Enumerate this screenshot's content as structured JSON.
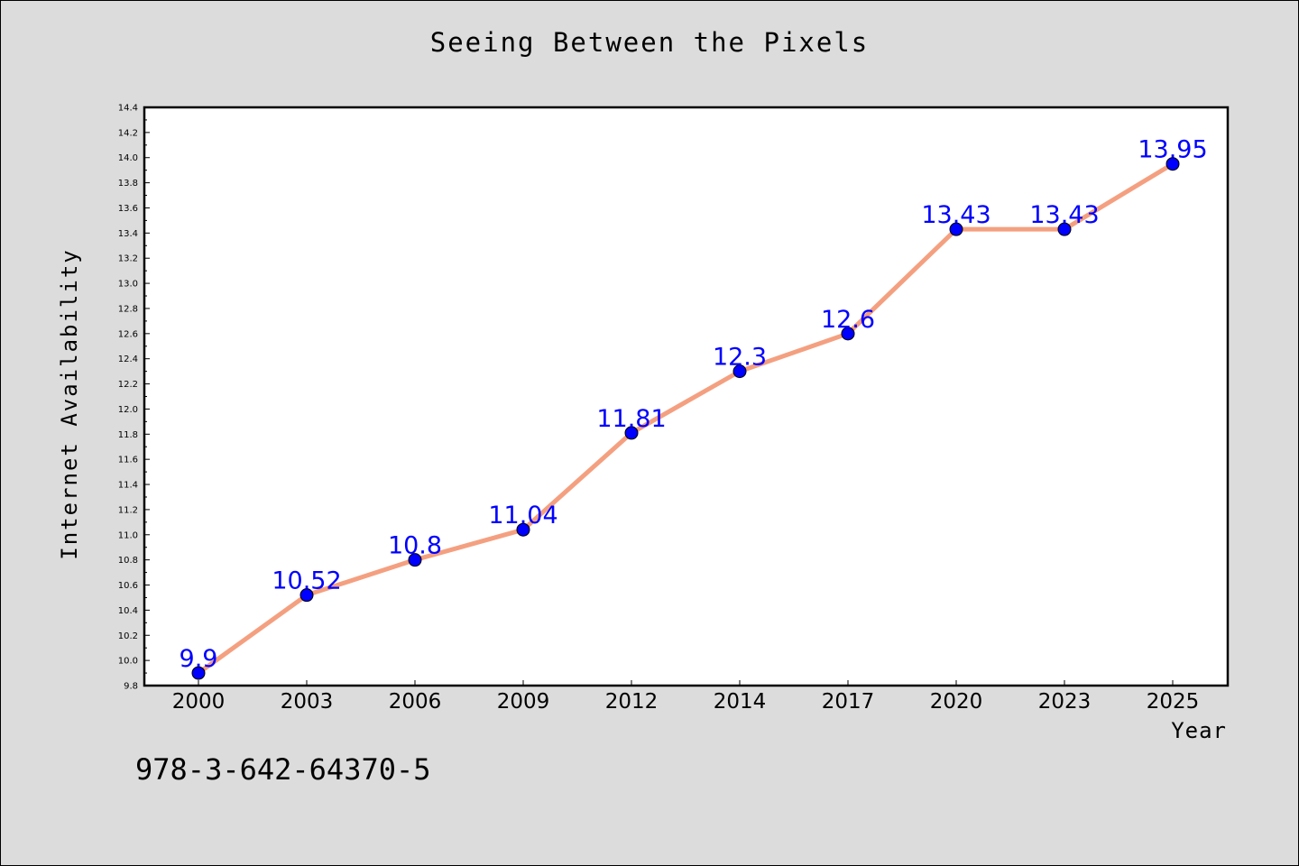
{
  "chart_data": {
    "type": "line",
    "title": "Seeing Between the Pixels",
    "xlabel": "Year",
    "ylabel": "Internet Availability",
    "categories": [
      "2000",
      "2003",
      "2006",
      "2009",
      "2012",
      "2014",
      "2017",
      "2020",
      "2023",
      "2025"
    ],
    "series": [
      {
        "values": [
          9.9,
          10.52,
          10.8,
          11.04,
          11.81,
          12.3,
          12.6,
          13.43,
          13.43,
          13.95
        ],
        "data_labels": [
          "9.9",
          "10.52",
          "10.8",
          "11.04",
          "11.81",
          "12.3",
          "12.6",
          "13.43",
          "13.43",
          "13.95"
        ]
      }
    ],
    "ylim": [
      9.8,
      14.4
    ],
    "yticks": [
      "9.8",
      "10.0",
      "10.2",
      "10.4",
      "10.6",
      "10.8",
      "11.0",
      "11.2",
      "11.4",
      "11.6",
      "11.8",
      "12.0",
      "12.2",
      "12.4",
      "12.6",
      "12.8",
      "13.0",
      "13.2",
      "13.4",
      "13.6",
      "13.8",
      "14.0",
      "14.2",
      "14.4"
    ],
    "grid": false,
    "legend": "none",
    "colors": {
      "line": "#f4a080",
      "marker": "#0000ff",
      "data_label": "#0000ff",
      "background": "#dcdcdc",
      "plot_background": "#ffffff"
    }
  },
  "footer": {
    "code": "978-3-642-64370-5"
  }
}
